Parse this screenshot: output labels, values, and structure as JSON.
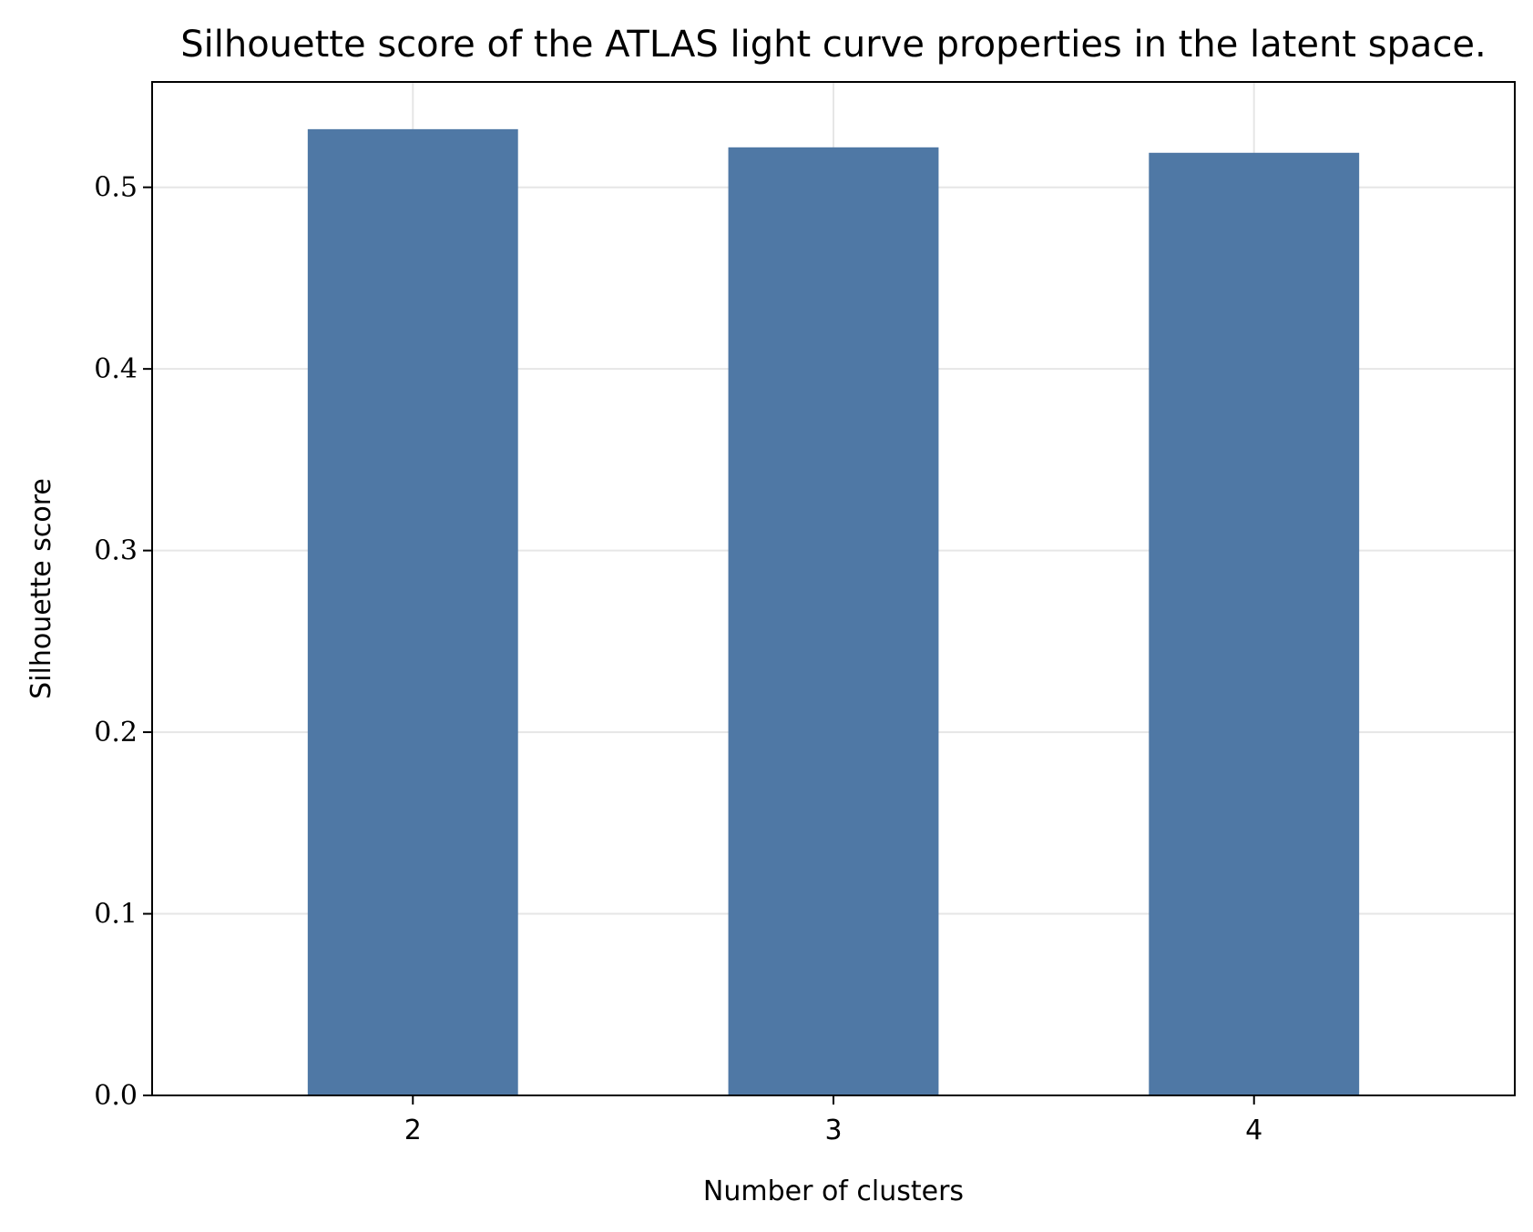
{
  "chart_data": {
    "type": "bar",
    "title": "Silhouette score of the ATLAS light curve properties in the latent space.",
    "xlabel": "Number of clusters",
    "ylabel": "Silhouette score",
    "categories": [
      "2",
      "3",
      "4"
    ],
    "values": [
      0.532,
      0.522,
      0.519
    ],
    "ylim": [
      0,
      0.558
    ],
    "yticks": [
      0.0,
      0.1,
      0.2,
      0.3,
      0.4,
      0.5
    ],
    "ytick_labels": [
      "0.0",
      "0.1",
      "0.2",
      "0.3",
      "0.4",
      "0.5"
    ],
    "grid": true,
    "legend": "none",
    "bar_color": "#4f78a5",
    "grid_color": "#e6e6e6"
  }
}
